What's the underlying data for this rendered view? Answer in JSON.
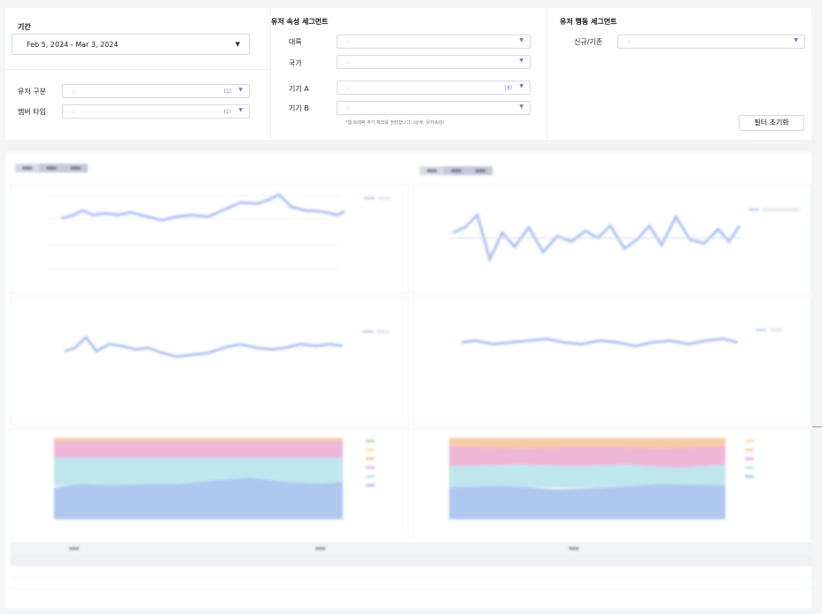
{
  "period": {
    "title": "기간",
    "value": "Feb 5, 2024 - Mar 3, 2024"
  },
  "user_filters": [
    {
      "label": "유저 구분",
      "value": "::",
      "count": "(1)"
    },
    {
      "label": "멤버 타입",
      "value": "::",
      "count": "(1)"
    }
  ],
  "attr_segment": {
    "title": "유저 속성 세그먼트",
    "rows": [
      {
        "label": "대륙",
        "value": "::",
        "count": ""
      },
      {
        "label": "국가",
        "value": "::",
        "count": ""
      },
      {
        "label": "기기 A",
        "value": "::",
        "count": "(4)"
      },
      {
        "label": "기기 B",
        "value": "::",
        "count": ""
      }
    ],
    "hint": "*웹 트래픽 추가 체크를 권장합니다. (상세: 유저속성)"
  },
  "behavior_segment": {
    "title": "유저 행동 세그먼트",
    "rows": [
      {
        "label": "신규/기존",
        "value": "::",
        "count": ""
      }
    ],
    "reset_label": "필터 초기화"
  },
  "colors": {
    "line": "#a9c2f5",
    "area_left": [
      "#aec8f2",
      "#bfe6ec",
      "#f0b7d9",
      "#f5cba7",
      "#f7e6a0"
    ],
    "area_right": [
      "#aec8f2",
      "#bfe6ec",
      "#f0b7d9",
      "#f5cba7"
    ]
  },
  "blurred_glyph": "■■■"
}
